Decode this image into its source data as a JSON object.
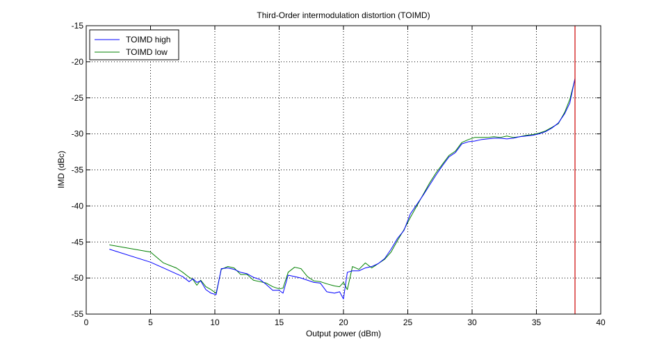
{
  "chart_data": {
    "type": "line",
    "title": "Third-Order intermodulation distortion (TOIMD)",
    "xlabel": "Output power (dBm)",
    "ylabel": "IMD (dBc)",
    "xlim": [
      0,
      40
    ],
    "ylim": [
      -55,
      -15
    ],
    "xticks": [
      0,
      5,
      10,
      15,
      20,
      25,
      30,
      35,
      40
    ],
    "yticks": [
      -15,
      -20,
      -25,
      -30,
      -35,
      -40,
      -45,
      -50,
      -55
    ],
    "grid": true,
    "legend_position": "top-left",
    "series": [
      {
        "name": "TOIMD high",
        "color": "#0000ff",
        "x": [
          1.8,
          5,
          6,
          7,
          7.5,
          8,
          8.3,
          8.6,
          8.9,
          9.3,
          9.7,
          10.1,
          10.5,
          11,
          11.5,
          12,
          12.5,
          13,
          13.5,
          14,
          14.5,
          15,
          15.3,
          15.7,
          16.2,
          16.7,
          17.2,
          17.7,
          18.2,
          18.7,
          19.3,
          19.7,
          20,
          20.3,
          20.7,
          21.2,
          21.7,
          22.2,
          22.7,
          23.2,
          23.7,
          24.2,
          24.7,
          25.2,
          25.7,
          26.2,
          26.7,
          27.2,
          27.7,
          28.2,
          28.7,
          29.2,
          29.7,
          30.2,
          30.7,
          31.2,
          31.7,
          32.2,
          32.7,
          33.2,
          33.7,
          34.2,
          34.7,
          35.2,
          35.7,
          36.2,
          36.7,
          37.2,
          37.6,
          38
        ],
        "values": [
          -46,
          -47.8,
          -48.6,
          -49.4,
          -49.8,
          -50.5,
          -50.1,
          -50.6,
          -50.4,
          -51.6,
          -52.1,
          -52.3,
          -48.7,
          -48.6,
          -48.8,
          -49.2,
          -49.4,
          -49.9,
          -50.2,
          -50.9,
          -51.7,
          -51.7,
          -52.1,
          -49.6,
          -49.8,
          -50,
          -50.3,
          -50.6,
          -50.7,
          -51.9,
          -52.1,
          -51.9,
          -52.9,
          -49.2,
          -49,
          -49,
          -48.6,
          -48.4,
          -48,
          -47.3,
          -46,
          -44.5,
          -43.4,
          -41.1,
          -39.8,
          -38.5,
          -37.1,
          -35.7,
          -34.4,
          -33.2,
          -32.6,
          -31.4,
          -31.1,
          -31,
          -30.8,
          -30.7,
          -30.6,
          -30.6,
          -30.7,
          -30.6,
          -30.4,
          -30.3,
          -30.2,
          -30,
          -29.7,
          -29.2,
          -28.5,
          -27.2,
          -25.7,
          -22.3
        ]
      },
      {
        "name": "TOIMD low",
        "color": "#008000",
        "x": [
          1.8,
          5,
          6,
          7,
          7.5,
          8,
          8.3,
          8.6,
          8.9,
          9.3,
          9.7,
          10.1,
          10.5,
          11,
          11.5,
          12,
          12.5,
          13,
          13.5,
          14,
          14.5,
          15,
          15.3,
          15.7,
          16.2,
          16.7,
          17.2,
          17.7,
          18.2,
          18.7,
          19.3,
          19.7,
          20,
          20.3,
          20.7,
          21.2,
          21.7,
          22.2,
          22.7,
          23.2,
          23.7,
          24.2,
          24.7,
          25.2,
          25.7,
          26.2,
          26.7,
          27.2,
          27.7,
          28.2,
          28.7,
          29.2,
          29.7,
          30.2,
          30.7,
          31.2,
          31.7,
          32.2,
          32.7,
          33.2,
          33.7,
          34.2,
          34.7,
          35.2,
          35.7,
          36.2,
          36.7,
          37.2,
          37.6,
          38
        ],
        "values": [
          -45.4,
          -46.4,
          -47.9,
          -48.6,
          -49.2,
          -49.9,
          -50.2,
          -51,
          -50.3,
          -51.2,
          -51.6,
          -52.1,
          -48.8,
          -48.4,
          -48.6,
          -49.5,
          -49.5,
          -50.3,
          -50.5,
          -50.7,
          -51.2,
          -51.5,
          -51.4,
          -49.2,
          -48.5,
          -48.7,
          -49.8,
          -50.4,
          -50.5,
          -50.8,
          -51.1,
          -51.2,
          -50.6,
          -51.6,
          -48.4,
          -48.8,
          -47.9,
          -48.6,
          -48,
          -47.4,
          -46.4,
          -44.8,
          -43.3,
          -41.6,
          -40,
          -38.4,
          -36.8,
          -35.4,
          -34.2,
          -33,
          -32.4,
          -31.2,
          -30.8,
          -30.5,
          -30.5,
          -30.5,
          -30.4,
          -30.5,
          -30.3,
          -30.5,
          -30.4,
          -30.2,
          -30.1,
          -29.9,
          -29.6,
          -29.1,
          -28.6,
          -27,
          -25.2,
          -22.4
        ]
      }
    ],
    "reference_line": {
      "x": 38,
      "color": "#cc0000"
    }
  }
}
